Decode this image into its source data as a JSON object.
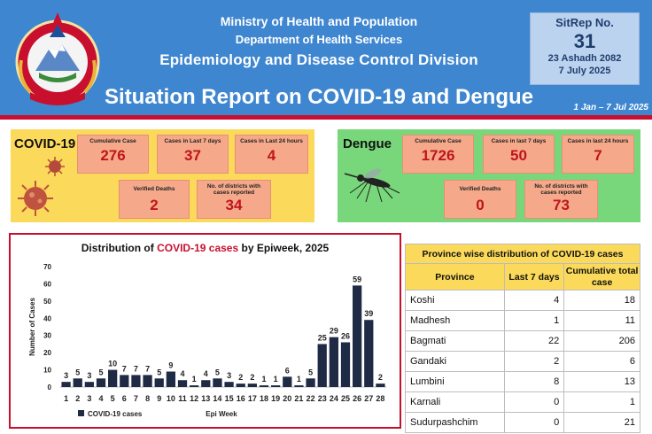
{
  "header": {
    "line1": "Ministry of Health and Population",
    "line2": "Department of Health Services",
    "line3": "Epidemiology and Disease Control Division",
    "title": "Situation Report on COVID-19 and Dengue",
    "date_range": "1 Jan – 7 Jul 2025",
    "sitrep": {
      "label": "SitRep No.",
      "number": "31",
      "date_bs": "23 Ashadh 2082",
      "date_ad": "7 July 2025"
    }
  },
  "covid": {
    "title": "COVID-19",
    "cumulative_label": "Cumulative Case",
    "cumulative_value": "276",
    "last7_label": "Cases in Last 7 days",
    "last7_value": "37",
    "last24_label": "Cases in Last 24 hours",
    "last24_value": "4",
    "deaths_label": "Verified Deaths",
    "deaths_value": "2",
    "districts_label": "No. of districts with cases reported",
    "districts_value": "34"
  },
  "dengue": {
    "title": "Dengue",
    "cumulative_label": "Cumulative Case",
    "cumulative_value": "1726",
    "last7_label": "Cases in last 7 days",
    "last7_value": "50",
    "last24_label": "Cases in last 24 hours",
    "last24_value": "7",
    "deaths_label": "Verified Deaths",
    "deaths_value": "0",
    "districts_label": "No. of districts with cases reported",
    "districts_value": "73"
  },
  "chart_data": {
    "type": "bar",
    "title_prefix": "Distribution of ",
    "title_highlight": "COVID-19 cases",
    "title_suffix": " by Epiweek, 2025",
    "xlabel": "Epi Week",
    "ylabel": "Number of Cases",
    "ylim": [
      0,
      70
    ],
    "yticks": [
      0,
      10,
      20,
      30,
      40,
      50,
      60,
      70
    ],
    "categories": [
      "1",
      "2",
      "3",
      "4",
      "5",
      "6",
      "7",
      "8",
      "9",
      "10",
      "11",
      "12",
      "13",
      "14",
      "15",
      "16",
      "17",
      "18",
      "19",
      "20",
      "21",
      "22",
      "23",
      "24",
      "25",
      "26",
      "27",
      "28"
    ],
    "series": [
      {
        "name": "COVID-19 cases",
        "values": [
          3,
          5,
          3,
          5,
          10,
          7,
          7,
          7,
          5,
          9,
          4,
          1,
          4,
          5,
          3,
          2,
          2,
          1,
          1,
          6,
          1,
          5,
          25,
          29,
          26,
          59,
          39,
          2
        ]
      }
    ],
    "bar_color": "#1f2a44",
    "grid": false,
    "legend": "bottom-left"
  },
  "province_table": {
    "title": "Province wise distribution of COVID-19 cases",
    "columns": [
      "Province",
      "Last 7 days",
      "Cumulative total case"
    ],
    "rows": [
      {
        "province": "Koshi",
        "last7": "4",
        "total": "18"
      },
      {
        "province": "Madhesh",
        "last7": "1",
        "total": "11"
      },
      {
        "province": "Bagmati",
        "last7": "22",
        "total": "206"
      },
      {
        "province": "Gandaki",
        "last7": "2",
        "total": "6"
      },
      {
        "province": "Lumbini",
        "last7": "8",
        "total": "13"
      },
      {
        "province": "Karnali",
        "last7": "0",
        "total": "1"
      },
      {
        "province": "Sudurpashchim",
        "last7": "0",
        "total": "21"
      }
    ]
  },
  "colors": {
    "header_blue": "#3f86d0",
    "accent_red": "#c8102e",
    "covid_panel": "#fbd95a",
    "dengue_panel": "#78d77b",
    "stat_box": "#f5a98a"
  }
}
